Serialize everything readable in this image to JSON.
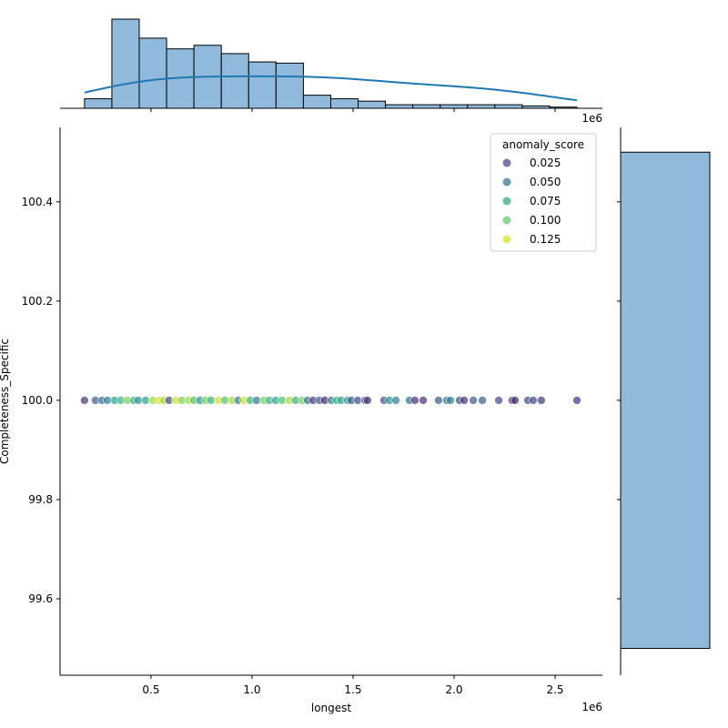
{
  "chart_data": {
    "type": "scatter",
    "subtype": "jointplot",
    "xlabel": "longest",
    "ylabel": "Completeness_Specific",
    "x_offset_label": "1e6",
    "top_offset_label": "1e6",
    "xlim": [
      0.05,
      2.734
    ],
    "ylim": [
      99.446,
      100.55
    ],
    "x_ticks": [
      "0.5",
      "1.0",
      "1.5",
      "2.0",
      "2.5"
    ],
    "x_tick_values": [
      0.5,
      1.0,
      1.5,
      2.0,
      2.5
    ],
    "y_ticks": [
      "99.6",
      "99.8",
      "100.0",
      "100.2",
      "100.4"
    ],
    "y_tick_values": [
      99.6,
      99.8,
      100.0,
      100.2,
      100.4
    ],
    "grid": false,
    "legend": {
      "title": "anomaly_score",
      "placement": "top-right",
      "entries": [
        {
          "label": "0.025",
          "color": "#463f85"
        },
        {
          "label": "0.050",
          "color": "#2b6c8c"
        },
        {
          "label": "0.075",
          "color": "#21a884"
        },
        {
          "label": "0.100",
          "color": "#5ec962"
        },
        {
          "label": "0.125",
          "color": "#d2e21b"
        }
      ]
    },
    "hue_range": [
      0.0,
      0.14
    ],
    "points": [
      {
        "x": 0.171,
        "y": 100.0,
        "score": 0.02
      },
      {
        "x": 0.225,
        "y": 100.0,
        "score": 0.04
      },
      {
        "x": 0.257,
        "y": 100.0,
        "score": 0.05
      },
      {
        "x": 0.284,
        "y": 100.0,
        "score": 0.06
      },
      {
        "x": 0.32,
        "y": 100.0,
        "score": 0.08
      },
      {
        "x": 0.351,
        "y": 100.0,
        "score": 0.09
      },
      {
        "x": 0.383,
        "y": 100.0,
        "score": 0.11
      },
      {
        "x": 0.414,
        "y": 100.0,
        "score": 0.09
      },
      {
        "x": 0.437,
        "y": 100.0,
        "score": 0.07
      },
      {
        "x": 0.473,
        "y": 100.0,
        "score": 0.08
      },
      {
        "x": 0.509,
        "y": 100.0,
        "score": 0.12
      },
      {
        "x": 0.541,
        "y": 100.0,
        "score": 0.13
      },
      {
        "x": 0.563,
        "y": 100.0,
        "score": 0.12
      },
      {
        "x": 0.59,
        "y": 100.0,
        "score": 0.03
      },
      {
        "x": 0.622,
        "y": 100.0,
        "score": 0.13
      },
      {
        "x": 0.653,
        "y": 100.0,
        "score": 0.11
      },
      {
        "x": 0.685,
        "y": 100.0,
        "score": 0.12
      },
      {
        "x": 0.712,
        "y": 100.0,
        "score": 0.1
      },
      {
        "x": 0.743,
        "y": 100.0,
        "score": 0.07
      },
      {
        "x": 0.77,
        "y": 100.0,
        "score": 0.11
      },
      {
        "x": 0.797,
        "y": 100.0,
        "score": 0.09
      },
      {
        "x": 0.833,
        "y": 100.0,
        "score": 0.13
      },
      {
        "x": 0.865,
        "y": 100.0,
        "score": 0.1
      },
      {
        "x": 0.901,
        "y": 100.0,
        "score": 0.12
      },
      {
        "x": 0.932,
        "y": 100.0,
        "score": 0.06
      },
      {
        "x": 0.959,
        "y": 100.0,
        "score": 0.13
      },
      {
        "x": 0.991,
        "y": 100.0,
        "score": 0.09
      },
      {
        "x": 1.023,
        "y": 100.0,
        "score": 0.06
      },
      {
        "x": 1.059,
        "y": 100.0,
        "score": 0.11
      },
      {
        "x": 1.086,
        "y": 100.0,
        "score": 0.09
      },
      {
        "x": 1.117,
        "y": 100.0,
        "score": 0.08
      },
      {
        "x": 1.149,
        "y": 100.0,
        "score": 0.1
      },
      {
        "x": 1.185,
        "y": 100.0,
        "score": 0.12
      },
      {
        "x": 1.216,
        "y": 100.0,
        "score": 0.09
      },
      {
        "x": 1.248,
        "y": 100.0,
        "score": 0.11
      },
      {
        "x": 1.275,
        "y": 100.0,
        "score": 0.05
      },
      {
        "x": 1.302,
        "y": 100.0,
        "score": 0.02
      },
      {
        "x": 1.333,
        "y": 100.0,
        "score": 0.04
      },
      {
        "x": 1.36,
        "y": 100.0,
        "score": 0.01
      },
      {
        "x": 1.392,
        "y": 100.0,
        "score": 0.06
      },
      {
        "x": 1.419,
        "y": 100.0,
        "score": 0.09
      },
      {
        "x": 1.441,
        "y": 100.0,
        "score": 0.08
      },
      {
        "x": 1.473,
        "y": 100.0,
        "score": 0.07
      },
      {
        "x": 1.491,
        "y": 100.0,
        "score": 0.04
      },
      {
        "x": 1.523,
        "y": 100.0,
        "score": 0.03
      },
      {
        "x": 1.559,
        "y": 100.0,
        "score": 0.03
      },
      {
        "x": 1.572,
        "y": 100.0,
        "score": 0.02
      },
      {
        "x": 1.653,
        "y": 100.0,
        "score": 0.03
      },
      {
        "x": 1.68,
        "y": 100.0,
        "score": 0.07
      },
      {
        "x": 1.712,
        "y": 100.0,
        "score": 0.06
      },
      {
        "x": 1.779,
        "y": 100.0,
        "score": 0.05
      },
      {
        "x": 1.806,
        "y": 100.0,
        "score": 0.02
      },
      {
        "x": 1.847,
        "y": 100.0,
        "score": 0.02
      },
      {
        "x": 1.923,
        "y": 100.0,
        "score": 0.04
      },
      {
        "x": 1.964,
        "y": 100.0,
        "score": 0.05
      },
      {
        "x": 1.982,
        "y": 100.0,
        "score": 0.06
      },
      {
        "x": 2.027,
        "y": 100.0,
        "score": 0.03
      },
      {
        "x": 2.05,
        "y": 100.0,
        "score": 0.02
      },
      {
        "x": 2.095,
        "y": 100.0,
        "score": 0.04
      },
      {
        "x": 2.14,
        "y": 100.0,
        "score": 0.04
      },
      {
        "x": 2.221,
        "y": 100.0,
        "score": 0.03
      },
      {
        "x": 2.288,
        "y": 100.0,
        "score": 0.01
      },
      {
        "x": 2.302,
        "y": 100.0,
        "score": 0.02
      },
      {
        "x": 2.365,
        "y": 100.0,
        "score": 0.03
      },
      {
        "x": 2.392,
        "y": 100.0,
        "score": 0.03
      },
      {
        "x": 2.432,
        "y": 100.0,
        "score": 0.02
      },
      {
        "x": 2.608,
        "y": 100.0,
        "score": 0.02
      }
    ],
    "x_marginal": {
      "type": "histogram",
      "kde": true,
      "bin_start": 0.171,
      "bin_width": 0.1354,
      "counts": [
        8,
        75,
        59,
        50,
        53,
        46,
        39,
        38,
        11,
        8,
        6,
        3,
        3,
        3,
        3,
        3,
        2,
        1
      ],
      "count_max": 80,
      "bar_color": "#8fbadb",
      "kde_color": "#1f77b4"
    },
    "y_marginal": {
      "type": "histogram",
      "bins": [
        {
          "start": 99.5,
          "end": 100.5,
          "count": 1
        }
      ],
      "bar_color": "#8fbadb"
    }
  }
}
